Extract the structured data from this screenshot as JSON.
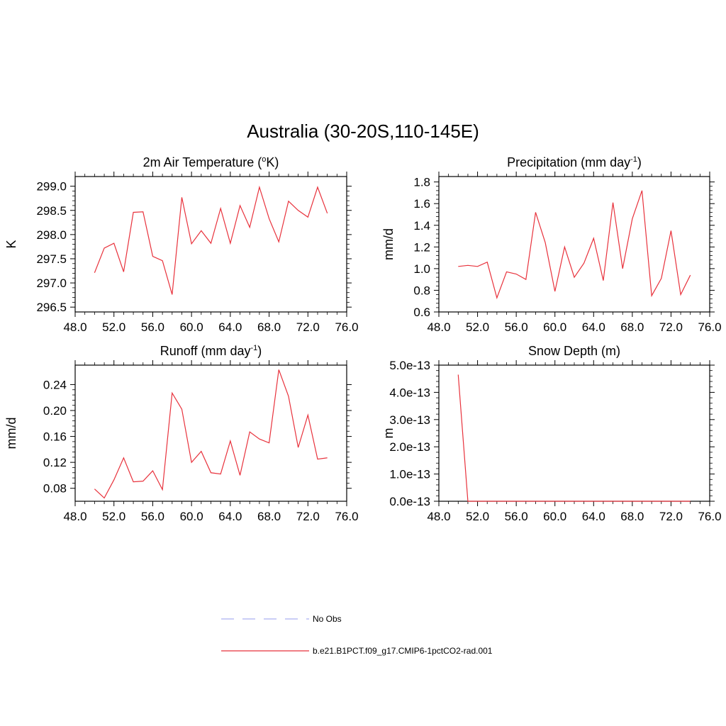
{
  "page_title": "Australia (30-20S,110-145E)",
  "legend": [
    {
      "label": "No Obs",
      "color": "#aab0f0",
      "style": "dashed"
    },
    {
      "label": "b.e21.B1PCT.f09_g17.CMIP6-1pctCO2-rad.001",
      "color": "#e8323c",
      "style": "solid"
    }
  ],
  "chart_data": [
    {
      "type": "line",
      "title": "2m Air Temperature (",
      "title_sup": "o",
      "title_tail": "K)",
      "ylabel": "K",
      "xlim": [
        48,
        76
      ],
      "ylim": [
        296.4,
        299.2
      ],
      "xticks": [
        48,
        52,
        56,
        60,
        64,
        68,
        72,
        76
      ],
      "xtick_labels": [
        "48.0",
        "52.0",
        "56.0",
        "60.0",
        "64.0",
        "68.0",
        "72.0",
        "76.0"
      ],
      "yticks": [
        296.5,
        297.0,
        297.5,
        298.0,
        298.5,
        299.0
      ],
      "ytick_labels": [
        "296.5",
        "297.0",
        "297.5",
        "298.0",
        "298.5",
        "299.0"
      ],
      "series": [
        {
          "color": "#e8323c",
          "x": [
            50,
            51,
            52,
            53,
            54,
            55,
            56,
            57,
            58,
            59,
            60,
            61,
            62,
            63,
            64,
            65,
            66,
            67,
            68,
            69,
            70,
            71,
            72,
            73,
            74
          ],
          "y": [
            297.21,
            297.72,
            297.82,
            297.23,
            298.46,
            298.47,
            297.55,
            297.46,
            296.76,
            298.77,
            297.81,
            298.08,
            297.82,
            298.54,
            297.82,
            298.6,
            298.15,
            298.98,
            298.33,
            297.85,
            298.69,
            298.5,
            298.36,
            298.98,
            298.44
          ]
        }
      ]
    },
    {
      "type": "line",
      "title": "Precipitation (mm day",
      "title_sup": "-1",
      "title_tail": ")",
      "ylabel": "mm/d",
      "xlim": [
        48,
        76
      ],
      "ylim": [
        0.6,
        1.85
      ],
      "xticks": [
        48,
        52,
        56,
        60,
        64,
        68,
        72,
        76
      ],
      "xtick_labels": [
        "48.0",
        "52.0",
        "56.0",
        "60.0",
        "64.0",
        "68.0",
        "72.0",
        "76.0"
      ],
      "yticks": [
        0.6,
        0.8,
        1.0,
        1.2,
        1.4,
        1.6,
        1.8
      ],
      "ytick_labels": [
        "0.6",
        "0.8",
        "1.0",
        "1.2",
        "1.4",
        "1.6",
        "1.8"
      ],
      "series": [
        {
          "color": "#e8323c",
          "x": [
            50,
            51,
            52,
            53,
            54,
            55,
            56,
            57,
            58,
            59,
            60,
            61,
            62,
            63,
            64,
            65,
            66,
            67,
            68,
            69,
            70,
            71,
            72,
            73,
            74
          ],
          "y": [
            1.02,
            1.03,
            1.02,
            1.06,
            0.73,
            0.97,
            0.95,
            0.9,
            1.52,
            1.24,
            0.79,
            1.2,
            0.92,
            1.05,
            1.28,
            0.89,
            1.61,
            1.0,
            1.46,
            1.72,
            0.75,
            0.91,
            1.35,
            0.76,
            0.94
          ]
        }
      ]
    },
    {
      "type": "line",
      "title": "Runoff (mm day",
      "title_sup": "-1",
      "title_tail": ")",
      "ylabel": "mm/d",
      "xlim": [
        48,
        76
      ],
      "ylim": [
        0.06,
        0.27
      ],
      "xticks": [
        48,
        52,
        56,
        60,
        64,
        68,
        72,
        76
      ],
      "xtick_labels": [
        "48.0",
        "52.0",
        "56.0",
        "60.0",
        "64.0",
        "68.0",
        "72.0",
        "76.0"
      ],
      "yticks": [
        0.08,
        0.12,
        0.16,
        0.2,
        0.24
      ],
      "ytick_labels": [
        "0.08",
        "0.12",
        "0.16",
        "0.20",
        "0.24"
      ],
      "series": [
        {
          "color": "#e8323c",
          "x": [
            50,
            51,
            52,
            53,
            54,
            55,
            56,
            57,
            58,
            59,
            60,
            61,
            62,
            63,
            64,
            65,
            66,
            67,
            68,
            69,
            70,
            71,
            72,
            73,
            74
          ],
          "y": [
            0.079,
            0.065,
            0.093,
            0.127,
            0.09,
            0.091,
            0.107,
            0.078,
            0.227,
            0.202,
            0.12,
            0.137,
            0.104,
            0.102,
            0.153,
            0.1,
            0.167,
            0.156,
            0.15,
            0.263,
            0.222,
            0.143,
            0.193,
            0.125,
            0.127
          ]
        }
      ]
    },
    {
      "type": "line",
      "title": "Snow Depth (m)",
      "title_sup": "",
      "title_tail": "",
      "ylabel": "m",
      "xlim": [
        48,
        76
      ],
      "ylim": [
        0,
        5e-13
      ],
      "xticks": [
        48,
        52,
        56,
        60,
        64,
        68,
        72,
        76
      ],
      "xtick_labels": [
        "48.0",
        "52.0",
        "56.0",
        "60.0",
        "64.0",
        "68.0",
        "72.0",
        "76.0"
      ],
      "yticks": [
        0,
        1e-13,
        2e-13,
        3e-13,
        4e-13,
        5e-13
      ],
      "ytick_labels": [
        "0.0e-13",
        "1.0e-13",
        "2.0e-13",
        "3.0e-13",
        "4.0e-13",
        "5.0e-13"
      ],
      "series": [
        {
          "color": "#e8323c",
          "x": [
            50,
            51,
            52,
            53,
            54,
            55,
            56,
            57,
            58,
            59,
            60,
            61,
            62,
            63,
            64,
            65,
            66,
            67,
            68,
            69,
            70,
            71,
            72,
            73,
            74
          ],
          "y": [
            4.65e-13,
            0,
            0,
            0,
            0,
            0,
            0,
            0,
            0,
            0,
            0,
            0,
            0,
            0,
            0,
            0,
            0,
            0,
            0,
            0,
            0,
            0,
            0,
            0,
            0
          ]
        }
      ]
    }
  ]
}
